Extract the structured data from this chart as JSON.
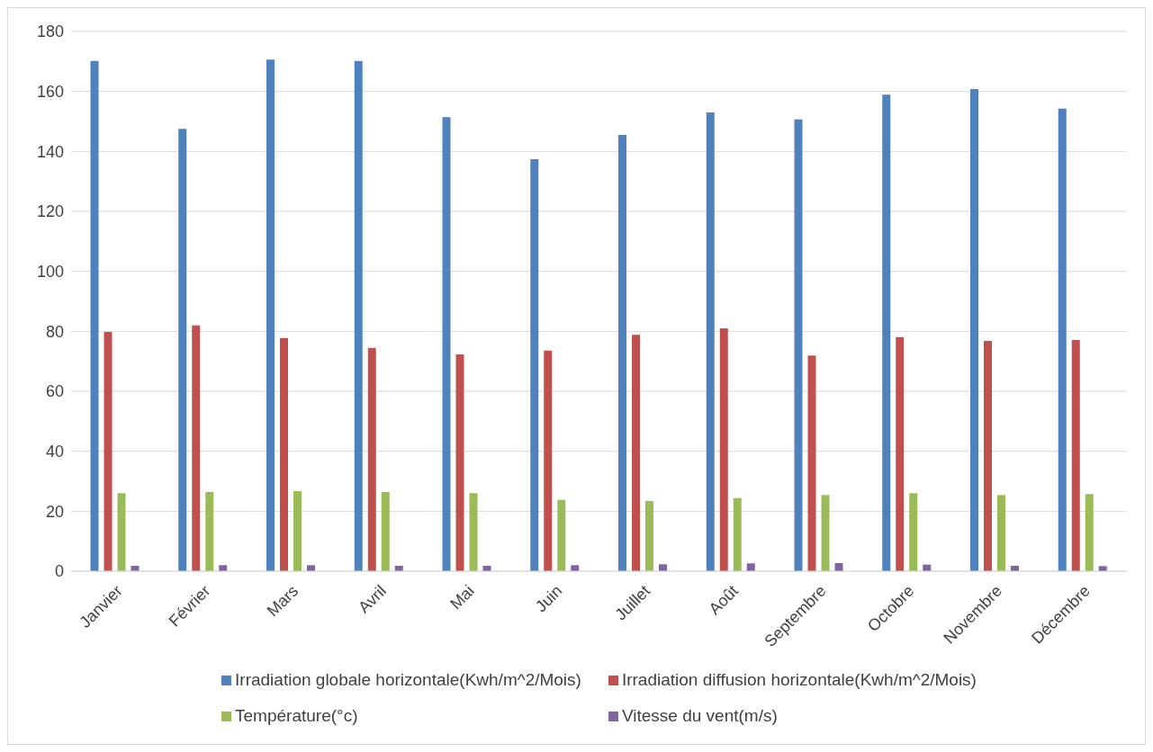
{
  "chart_data": {
    "type": "bar",
    "categories": [
      "Janvier",
      "Février",
      "Mars",
      "Avril",
      "Mai",
      "Juin",
      "Juillet",
      "Août",
      "Septembre",
      "Octobre",
      "Novembre",
      "Décembre"
    ],
    "series": [
      {
        "name": "Irradiation globale horizontale(Kwh/m^2/Mois)",
        "color": "#4f81bd",
        "values": [
          170.2,
          147.5,
          170.6,
          170.2,
          151.4,
          137.4,
          145.5,
          153,
          150.7,
          158.9,
          160.8,
          154.3
        ]
      },
      {
        "name": "Irradiation diffusion horizontale(Kwh/m^2/Mois)",
        "color": "#c0504d",
        "values": [
          79.8,
          82,
          77.8,
          74.5,
          72.3,
          73.6,
          78.8,
          81,
          71.9,
          78.1,
          76.8,
          77.1
        ]
      },
      {
        "name": "Température(°c)",
        "color": "#9bbb59",
        "values": [
          26,
          26.4,
          26.7,
          26.4,
          26,
          23.8,
          23.4,
          24.4,
          25.4,
          26,
          25.4,
          25.7
        ]
      },
      {
        "name": "Vitesse du vent(m/s)",
        "color": "#8064a2",
        "values": [
          1.8,
          2,
          2,
          1.8,
          1.8,
          2,
          2.3,
          2.6,
          2.7,
          2.2,
          1.8,
          1.7
        ]
      }
    ],
    "ylim": [
      0,
      180
    ],
    "yticks": [
      0,
      20,
      40,
      60,
      80,
      100,
      120,
      140,
      160,
      180
    ],
    "grid": "y",
    "legend": "bottom"
  }
}
